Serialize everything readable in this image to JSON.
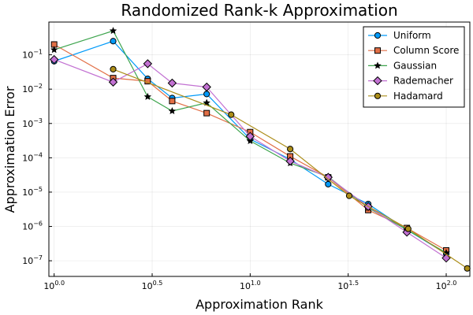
{
  "chart_data": {
    "type": "line",
    "title": "Randomized Rank-k Approximation",
    "xlabel": "Approximation Rank",
    "ylabel": "Approximation Error",
    "xscale": "log10",
    "yscale": "log10",
    "xlim": [
      0.94,
      132
    ],
    "ylim": [
      3.5e-08,
      0.9
    ],
    "grid": true,
    "legend_position": "top-right",
    "x_ticks": [
      {
        "value": 1,
        "base": "10",
        "exp": "0.0"
      },
      {
        "value": 3.1623,
        "base": "10",
        "exp": "0.5"
      },
      {
        "value": 10,
        "base": "10",
        "exp": "1.0"
      },
      {
        "value": 31.623,
        "base": "10",
        "exp": "1.5"
      },
      {
        "value": 100,
        "base": "10",
        "exp": "2.0"
      }
    ],
    "y_ticks": [
      {
        "value": 1e-07,
        "base": "10",
        "exp": "−7"
      },
      {
        "value": 1e-06,
        "base": "10",
        "exp": "−6"
      },
      {
        "value": 1e-05,
        "base": "10",
        "exp": "−5"
      },
      {
        "value": 0.0001,
        "base": "10",
        "exp": "−4"
      },
      {
        "value": 0.001,
        "base": "10",
        "exp": "−3"
      },
      {
        "value": 0.01,
        "base": "10",
        "exp": "−2"
      },
      {
        "value": 0.1,
        "base": "10",
        "exp": "−1"
      }
    ],
    "series": [
      {
        "name": "Uniform",
        "color": "#009af9",
        "marker": "circle",
        "x": [
          1,
          2,
          3,
          4,
          6,
          10,
          16,
          25,
          40,
          63,
          100
        ],
        "y": [
          0.065,
          0.25,
          0.02,
          0.0055,
          0.0072,
          0.00035,
          9e-05,
          1.7e-05,
          4.5e-06,
          8e-07,
          1.6e-07
        ]
      },
      {
        "name": "Column Score",
        "color": "#e26f46",
        "marker": "square",
        "x": [
          1,
          2,
          3,
          4,
          6,
          10,
          16,
          25,
          40,
          63,
          100
        ],
        "y": [
          0.2,
          0.021,
          0.017,
          0.0045,
          0.002,
          0.00056,
          0.00011,
          2.7e-05,
          3e-06,
          9e-07,
          2e-07
        ]
      },
      {
        "name": "Gaussian",
        "color": "#3da44d",
        "marker": "star",
        "x": [
          1,
          2,
          3,
          4,
          6,
          10,
          16,
          25,
          40,
          63,
          100
        ],
        "y": [
          0.14,
          0.5,
          0.006,
          0.0023,
          0.004,
          0.00031,
          7e-05,
          2.8e-05,
          3.5e-06,
          8e-07,
          1.7e-07
        ]
      },
      {
        "name": "Rademacher",
        "color": "#c271d2",
        "marker": "diamond",
        "x": [
          1,
          2,
          3,
          4,
          6,
          10,
          16,
          25,
          40,
          63,
          100
        ],
        "y": [
          0.073,
          0.016,
          0.055,
          0.015,
          0.0115,
          0.00042,
          8e-05,
          2.7e-05,
          3.8e-06,
          6.8e-07,
          1.2e-07
        ]
      },
      {
        "name": "Hadamard",
        "color": "#ac8d18",
        "marker": "circle",
        "x": [
          2,
          8,
          16,
          32,
          64,
          128
        ],
        "y": [
          0.038,
          0.0018,
          0.00018,
          7.8e-06,
          8.5e-07,
          6e-08
        ]
      }
    ]
  }
}
